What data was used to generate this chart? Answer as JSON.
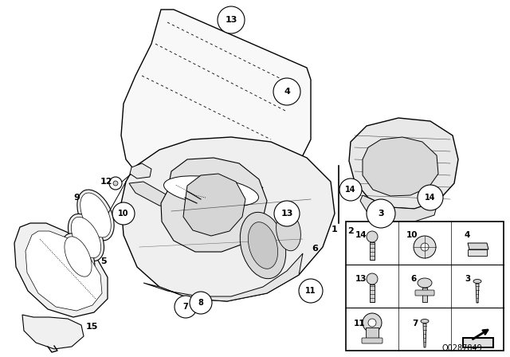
{
  "background_color": "#ffffff",
  "fig_width": 6.4,
  "fig_height": 4.48,
  "dpi": 100,
  "watermark_text": "O0287849",
  "watermark_fontsize": 7
}
